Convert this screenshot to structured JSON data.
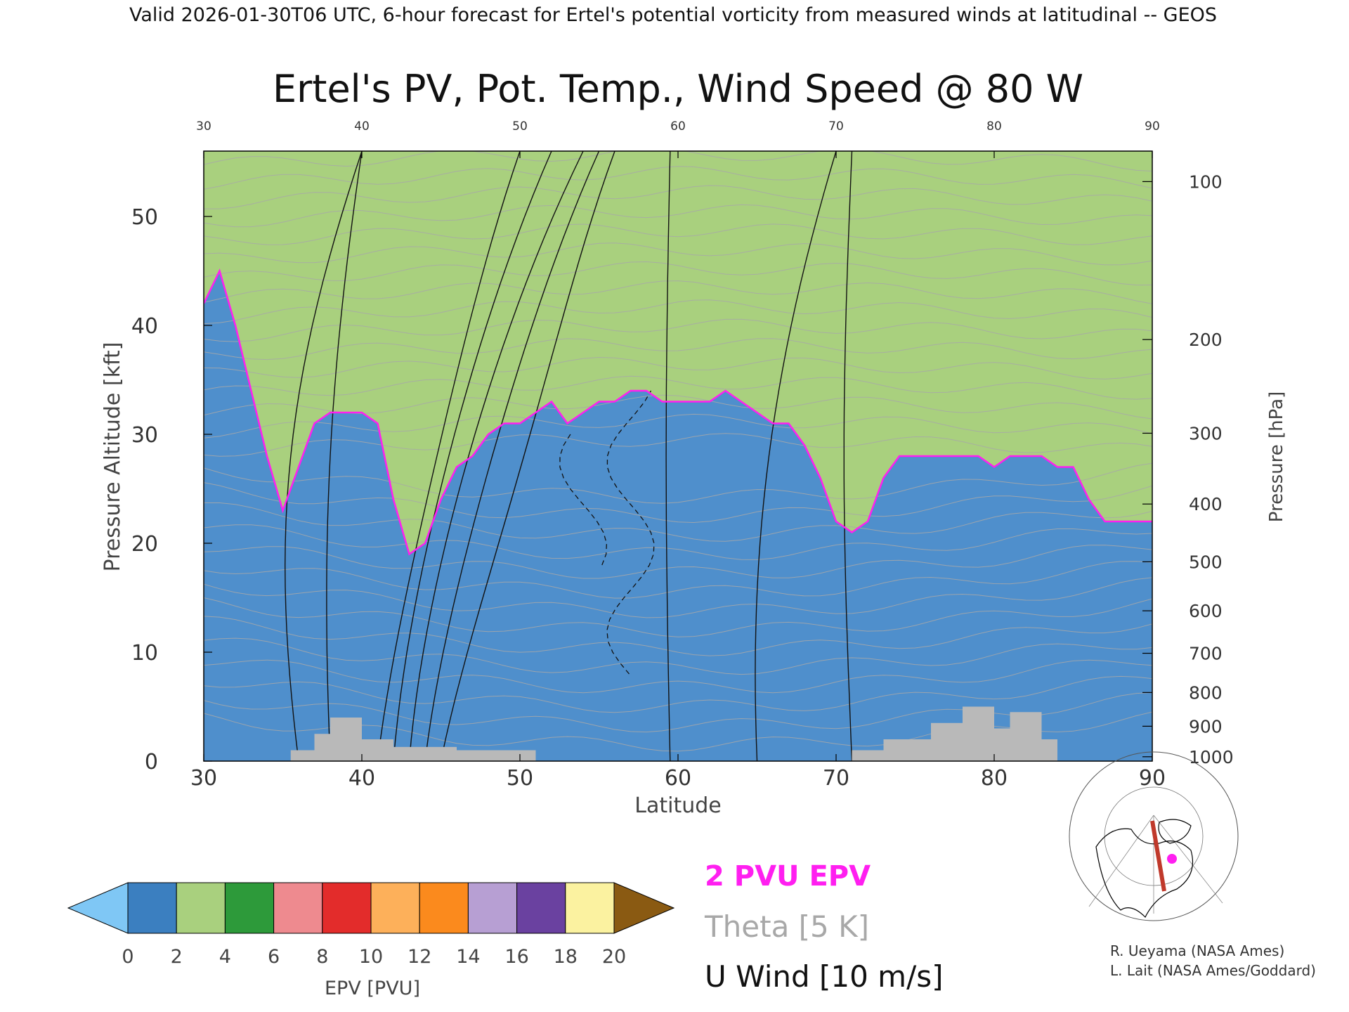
{
  "header": {
    "valid_line": "Valid 2026-01-30T06 UTC, 6-hour forecast for Ertel's potential vorticity from measured winds at latitudinal -- GEOS"
  },
  "chart_data": {
    "type": "heatmap",
    "title": "Ertel's PV, Pot. Temp., Wind Speed @ 80 W",
    "xlabel": "Latitude",
    "ylabel": "Pressure Altitude [kft]",
    "y2label": "Pressure [hPa]",
    "xlim": [
      30,
      90
    ],
    "ylim": [
      0,
      56
    ],
    "x_ticks": [
      "30",
      "40",
      "50",
      "60",
      "70",
      "80",
      "90"
    ],
    "x_tick_values": [
      30,
      40,
      50,
      60,
      70,
      80,
      90
    ],
    "y_ticks": [
      "0",
      "10",
      "20",
      "30",
      "40",
      "50"
    ],
    "y_tick_values": [
      0,
      10,
      20,
      30,
      40,
      50
    ],
    "pressure_ticks": [
      {
        "label": "1000",
        "kft": 0.4
      },
      {
        "label": "900",
        "kft": 3.2
      },
      {
        "label": "800",
        "kft": 6.3
      },
      {
        "label": "700",
        "kft": 9.9
      },
      {
        "label": "600",
        "kft": 13.8
      },
      {
        "label": "500",
        "kft": 18.3
      },
      {
        "label": "400",
        "kft": 23.6
      },
      {
        "label": "300",
        "kft": 30.1
      },
      {
        "label": "200",
        "kft": 38.7
      },
      {
        "label": "100",
        "kft": 53.2
      }
    ],
    "tropopause_2pvu_kft": [
      [
        30,
        42
      ],
      [
        31,
        45
      ],
      [
        32,
        40
      ],
      [
        33,
        34
      ],
      [
        34,
        28
      ],
      [
        35,
        23
      ],
      [
        36,
        27
      ],
      [
        37,
        31
      ],
      [
        38,
        32
      ],
      [
        39,
        32
      ],
      [
        40,
        32
      ],
      [
        41,
        31
      ],
      [
        42,
        24
      ],
      [
        43,
        19
      ],
      [
        44,
        20
      ],
      [
        45,
        24
      ],
      [
        46,
        27
      ],
      [
        47,
        28
      ],
      [
        48,
        30
      ],
      [
        49,
        31
      ],
      [
        50,
        31
      ],
      [
        51,
        32
      ],
      [
        52,
        33
      ],
      [
        53,
        31
      ],
      [
        54,
        32
      ],
      [
        55,
        33
      ],
      [
        56,
        33
      ],
      [
        57,
        34
      ],
      [
        58,
        34
      ],
      [
        59,
        33
      ],
      [
        60,
        33
      ],
      [
        61,
        33
      ],
      [
        62,
        33
      ],
      [
        63,
        34
      ],
      [
        64,
        33
      ],
      [
        65,
        32
      ],
      [
        66,
        31
      ],
      [
        67,
        31
      ],
      [
        68,
        29
      ],
      [
        69,
        26
      ],
      [
        70,
        22
      ],
      [
        71,
        21
      ],
      [
        72,
        22
      ],
      [
        73,
        26
      ],
      [
        74,
        28
      ],
      [
        75,
        28
      ],
      [
        76,
        28
      ],
      [
        77,
        28
      ],
      [
        78,
        28
      ],
      [
        79,
        28
      ],
      [
        80,
        27
      ],
      [
        81,
        28
      ],
      [
        82,
        28
      ],
      [
        83,
        28
      ],
      [
        84,
        27
      ],
      [
        85,
        27
      ],
      [
        86,
        24
      ],
      [
        87,
        22
      ],
      [
        88,
        22
      ],
      [
        89,
        22
      ],
      [
        90,
        22
      ]
    ],
    "colorbar": {
      "label": "EPV [PVU]",
      "ticks": [
        "0",
        "2",
        "4",
        "6",
        "8",
        "10",
        "12",
        "14",
        "16",
        "18",
        "20"
      ],
      "min": 0,
      "max": 20,
      "colors": [
        "#3b7fc0",
        "#a9d07e",
        "#2d9a3a",
        "#ee8a8f",
        "#e32c2b",
        "#fdb05a",
        "#fb8a1d",
        "#b79fd3",
        "#6a41a0",
        "#fbf2a0"
      ],
      "under_color": "#7fc7f5",
      "over_color": "#8a5a12"
    }
  },
  "legend": {
    "pvu_label": "2 PVU EPV",
    "theta_label": "Theta [5 K]",
    "uwind_label": "U Wind [10 m/s]",
    "pvu_color": "#ff1ff0",
    "theta_color": "#a8a8a8",
    "uwind_color": "#111111"
  },
  "credits": {
    "line1": "R. Ueyama (NASA Ames)",
    "line2": "L. Lait (NASA Ames/Goddard)"
  }
}
